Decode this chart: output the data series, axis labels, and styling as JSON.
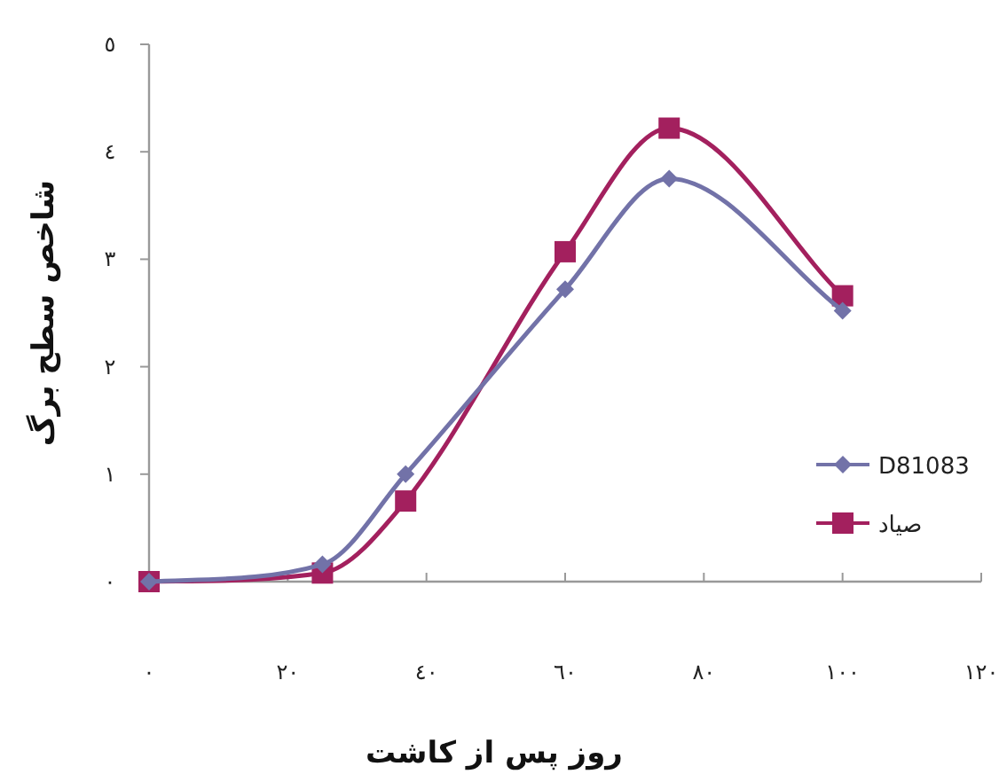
{
  "chart_data": {
    "type": "line",
    "xlabel": "روز پس از کاشت",
    "ylabel": "شاخص سطح برگ",
    "xlim": [
      0,
      120
    ],
    "ylim": [
      0,
      5
    ],
    "xticks": [
      {
        "value": 0,
        "label": "٠"
      },
      {
        "value": 20,
        "label": "٢٠"
      },
      {
        "value": 40,
        "label": "٤٠"
      },
      {
        "value": 60,
        "label": "٦٠"
      },
      {
        "value": 80,
        "label": "٨٠"
      },
      {
        "value": 100,
        "label": "١٠٠"
      },
      {
        "value": 120,
        "label": "١٢٠"
      }
    ],
    "yticks": [
      {
        "value": 0,
        "label": "٠"
      },
      {
        "value": 1,
        "label": "١"
      },
      {
        "value": 2,
        "label": "٢"
      },
      {
        "value": 3,
        "label": "٣"
      },
      {
        "value": 4,
        "label": "٤"
      },
      {
        "value": 5,
        "label": "٥"
      }
    ],
    "x": [
      0,
      25,
      37,
      60,
      75,
      100
    ],
    "series": [
      {
        "name": "D81083",
        "color": "#7272a8",
        "marker": "diamond",
        "values": [
          0,
          0.16,
          1.0,
          2.72,
          3.75,
          2.52
        ]
      },
      {
        "name": "صیاد",
        "color": "#a3205e",
        "marker": "square",
        "values": [
          0,
          0.08,
          0.75,
          3.07,
          4.22,
          2.66
        ]
      }
    ],
    "grid": false,
    "legend": "right",
    "line_style": "solid"
  }
}
